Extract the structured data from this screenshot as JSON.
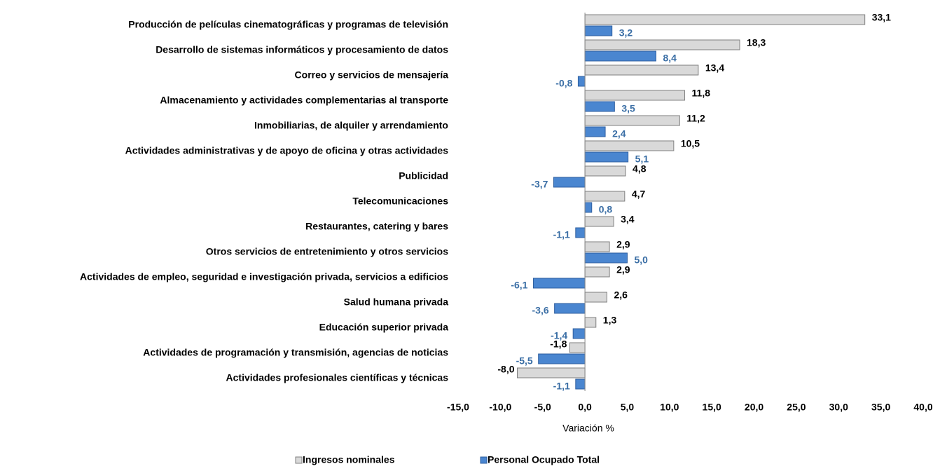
{
  "chart_data": {
    "type": "bar",
    "orientation": "horizontal",
    "categories": [
      "Producción de películas cinematográficas y programas de televisión",
      "Desarrollo de sistemas informáticos y procesamiento de datos",
      "Correo y servicios de mensajería",
      "Almacenamiento y actividades complementarias al transporte",
      "Inmobiliarias, de alquiler y arrendamiento",
      "Actividades administrativas y de apoyo de oficina y otras actividades",
      "Publicidad",
      "Telecomunicaciones",
      "Restaurantes, catering y bares",
      "Otros servicios de entretenimiento y otros servicios",
      "Actividades de empleo, seguridad e investigación privada, servicios a edificios",
      "Salud humana privada",
      "Educación superior privada",
      "Actividades de programación y transmisión, agencias de noticias",
      "Actividades profesionales científicas y técnicas"
    ],
    "series": [
      {
        "name": "Ingresos nominales",
        "color": "#d9d9d9",
        "values": [
          33.1,
          18.3,
          13.4,
          11.8,
          11.2,
          10.5,
          4.8,
          4.7,
          3.4,
          2.9,
          2.9,
          2.6,
          1.3,
          -1.8,
          -8.0
        ],
        "value_labels": [
          "33,1",
          "18,3",
          "13,4",
          "11,8",
          "11,2",
          "10,5",
          "4,8",
          "4,7",
          "3,4",
          "2,9",
          "2,9",
          "2,6",
          "1,3",
          "-1,8",
          "-8,0"
        ]
      },
      {
        "name": "Personal Ocupado Total",
        "color": "#4a86d0",
        "values": [
          3.2,
          8.4,
          -0.8,
          3.5,
          2.4,
          5.1,
          -3.7,
          0.8,
          -1.1,
          5.0,
          -6.1,
          -3.6,
          -1.4,
          -5.5,
          -1.1
        ],
        "value_labels": [
          "3,2",
          "8,4",
          "-0,8",
          "3,5",
          "2,4",
          "5,1",
          "-3,7",
          "0,8",
          "-1,1",
          "5,0",
          "-6,1",
          "-3,6",
          "-1,4",
          "-5,5",
          "-1,1"
        ]
      }
    ],
    "xlabel": "Variación %",
    "xlim": [
      -15,
      40
    ],
    "xticks": [
      {
        "value": -15,
        "label": "-15,0"
      },
      {
        "value": -10,
        "label": "-10,0"
      },
      {
        "value": -5,
        "label": "-5,0"
      },
      {
        "value": 0,
        "label": "0,0"
      },
      {
        "value": 5,
        "label": "5,0"
      },
      {
        "value": 10,
        "label": "10,0"
      },
      {
        "value": 15,
        "label": "15,0"
      },
      {
        "value": 20,
        "label": "20,0"
      },
      {
        "value": 25,
        "label": "25,0"
      },
      {
        "value": 30,
        "label": "30,0"
      },
      {
        "value": 35,
        "label": "35,0"
      },
      {
        "value": 40,
        "label": "40,0"
      }
    ],
    "grid": false,
    "legend": "bottom"
  }
}
